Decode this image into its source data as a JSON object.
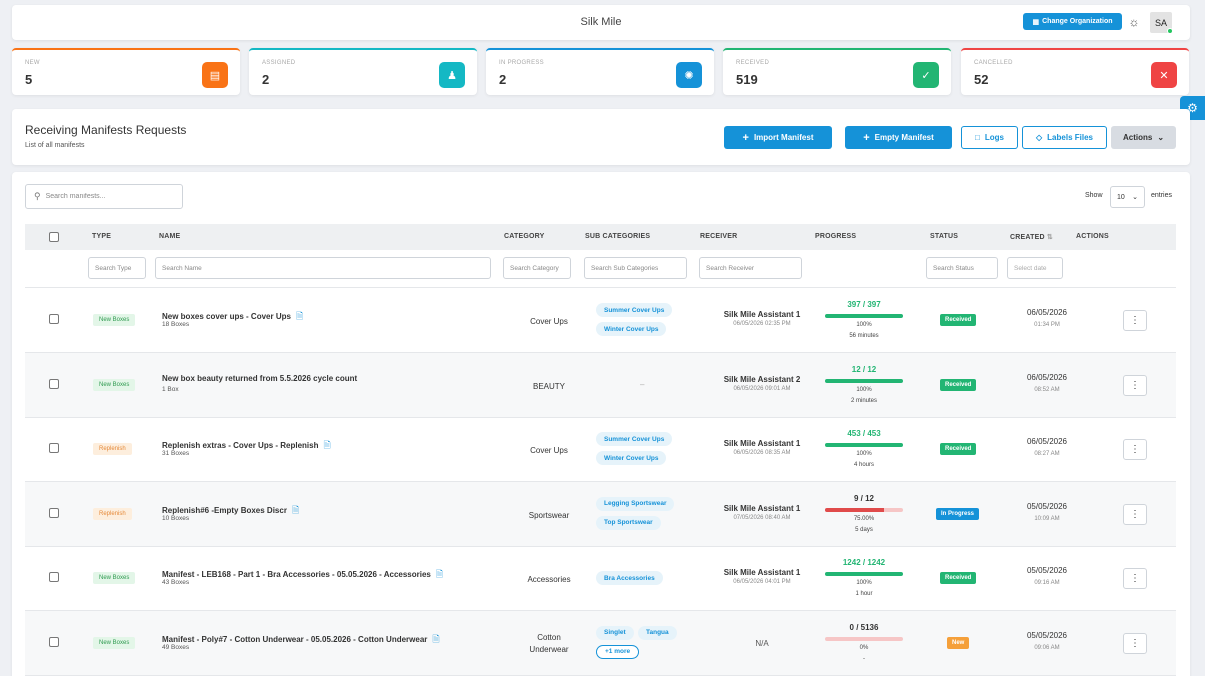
{
  "topbar": {
    "title": "Silk Mile",
    "change_org": "Change Organization",
    "avatar": "SA"
  },
  "stats": [
    {
      "label": "NEW",
      "value": "5",
      "color": "#f97316",
      "icon": "document-icon"
    },
    {
      "label": "ASSIGNED",
      "value": "2",
      "color": "#14b8c4",
      "icon": "user-check-icon"
    },
    {
      "label": "IN PROGRESS",
      "value": "2",
      "color": "#1592d8",
      "icon": "spinner-icon"
    },
    {
      "label": "RECEIVED",
      "value": "519",
      "color": "#22b573",
      "icon": "check-circle-icon"
    },
    {
      "label": "CANCELLED",
      "value": "52",
      "color": "#ef4444",
      "icon": "x-icon"
    }
  ],
  "header": {
    "title": "Receiving Manifests Requests",
    "subtitle": "List of all manifests",
    "import_btn": "Import Manifest",
    "empty_btn": "Empty Manifest",
    "logs_btn": "Logs",
    "labels_btn": "Labels Files",
    "actions_btn": "Actions"
  },
  "table": {
    "search_placeholder": "Search manifests...",
    "show_label": "Show",
    "page_size": "10",
    "entries_label": "entries",
    "columns": [
      "TYPE",
      "NAME",
      "CATEGORY",
      "SUB CATEGORIES",
      "RECEIVER",
      "PROGRESS",
      "STATUS",
      "CREATED",
      "ACTIONS"
    ],
    "filters": {
      "type": "Search Type",
      "name": "Search Name",
      "category": "Search Category",
      "sub": "Search Sub Categories",
      "receiver": "Search Receiver",
      "status": "Search Status",
      "date": "Select date"
    },
    "rows": [
      {
        "type": "New Boxes",
        "name": "New boxes cover ups - Cover Ups",
        "boxes": "18 Boxes",
        "category": "Cover Ups",
        "subs": [
          "Summer Cover Ups",
          "Winter Cover Ups"
        ],
        "receiver": "Silk Mile Assistant 1",
        "recv_date": "06/05/2026 02:35 PM",
        "progress": "397 / 397",
        "percent": "100%",
        "fraction": 1.0,
        "time": "56 minutes",
        "status": "Received",
        "date": "06/05/2026",
        "clock": "01:34 PM"
      },
      {
        "type": "New Boxes",
        "name": "New box beauty returned from 5.5.2026 cycle count",
        "boxes": "1 Box",
        "category": "BEAUTY",
        "subs": [],
        "receiver": "Silk Mile Assistant 2",
        "recv_date": "06/05/2026 09:01 AM",
        "progress": "12 / 12",
        "percent": "100%",
        "fraction": 1.0,
        "time": "2 minutes",
        "status": "Received",
        "date": "06/05/2026",
        "clock": "08:52 AM"
      },
      {
        "type": "Replenish",
        "name": "Replenish extras - Cover Ups - Replenish",
        "boxes": "31 Boxes",
        "category": "Cover Ups",
        "subs": [
          "Summer Cover Ups",
          "Winter Cover Ups"
        ],
        "receiver": "Silk Mile Assistant 1",
        "recv_date": "06/05/2026 08:35 AM",
        "progress": "453 / 453",
        "percent": "100%",
        "fraction": 1.0,
        "time": "4 hours",
        "status": "Received",
        "date": "06/05/2026",
        "clock": "08:27 AM"
      },
      {
        "type": "Replenish",
        "name": "Replenish#6 -Empty Boxes Discr",
        "boxes": "10 Boxes",
        "category": "Sportswear",
        "subs": [
          "Legging Sportswear",
          "Top Sportswear"
        ],
        "receiver": "Silk Mile Assistant 1",
        "recv_date": "07/05/2026 08:40 AM",
        "progress": "9 / 12",
        "percent": "75.00%",
        "fraction": 0.75,
        "time": "5 days",
        "status": "In Progress",
        "date": "05/05/2026",
        "clock": "10:09 AM"
      },
      {
        "type": "New Boxes",
        "name": "Manifest - LEB168 - Part 1 - Bra Accessories - 05.05.2026 - Accessories",
        "boxes": "43 Boxes",
        "category": "Accessories",
        "subs": [
          "Bra Accessories"
        ],
        "receiver": "Silk Mile Assistant 1",
        "recv_date": "06/05/2026 04:01 PM",
        "progress": "1242 / 1242",
        "percent": "100%",
        "fraction": 1.0,
        "time": "1 hour",
        "status": "Received",
        "date": "05/05/2026",
        "clock": "09:16 AM"
      },
      {
        "type": "New Boxes",
        "name": "Manifest - Poly#7 - Cotton Underwear - 05.05.2026 - Cotton Underwear",
        "boxes": "49 Boxes",
        "category": "Cotton Underwear",
        "subs": [
          "Singlet",
          "Tangua"
        ],
        "more": "+1 more",
        "receiver": "N/A",
        "recv_date": "",
        "progress": "0 / 5136",
        "percent": "0%",
        "fraction": 0.0,
        "time": "-",
        "status": "New",
        "date": "05/05/2026",
        "clock": "09:06 AM"
      }
    ]
  }
}
